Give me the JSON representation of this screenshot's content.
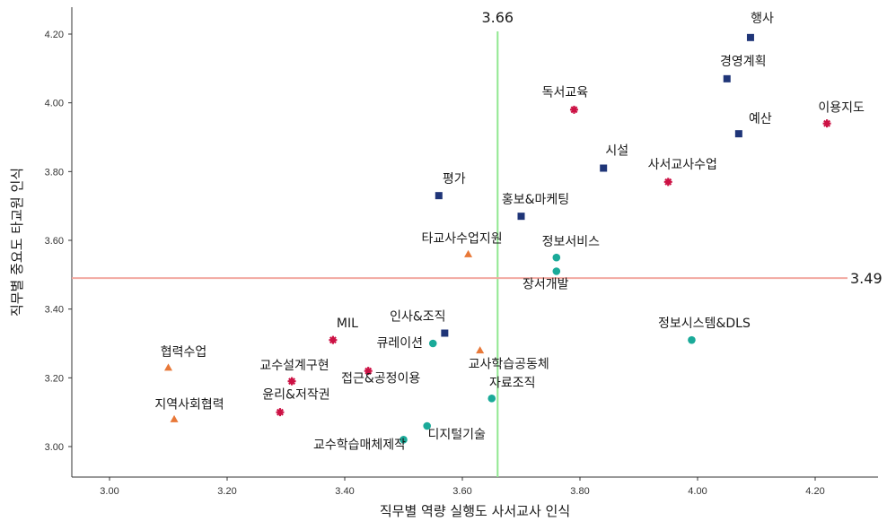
{
  "chart_data": {
    "type": "scatter",
    "xlabel": "직무별 역량 실행도 사서교사 인식",
    "ylabel": "직무별 중요도 타교원 인식",
    "xlim": [
      2.93,
      4.33
    ],
    "ylim": [
      2.94,
      4.26
    ],
    "xticks": [
      "3.00",
      "3.20",
      "3.40",
      "3.60",
      "3.80",
      "4.00",
      "4.20"
    ],
    "yticks": [
      "3.00",
      "3.20",
      "3.40",
      "3.60",
      "3.80",
      "4.00",
      "4.20"
    ],
    "grid": false,
    "reference_lines": [
      {
        "axis": "x",
        "value": 3.66,
        "label": "3.66",
        "color": "#90e890"
      },
      {
        "axis": "y",
        "value": 3.49,
        "label": "3.49",
        "color": "#f2a8a0"
      }
    ],
    "series": [
      {
        "marker": "square",
        "color": "#1f3578",
        "points": [
          {
            "label": "행사",
            "x": 4.09,
            "y": 4.19
          },
          {
            "label": "경영계획",
            "x": 4.05,
            "y": 4.07
          },
          {
            "label": "예산",
            "x": 4.07,
            "y": 3.91
          },
          {
            "label": "시설",
            "x": 3.84,
            "y": 3.81
          },
          {
            "label": "평가",
            "x": 3.56,
            "y": 3.73
          },
          {
            "label": "홍보&마케팅",
            "x": 3.7,
            "y": 3.67
          },
          {
            "label": "인사&조직",
            "x": 3.57,
            "y": 3.33
          }
        ]
      },
      {
        "marker": "star",
        "color": "#cc1144",
        "points": [
          {
            "label": "독서교육",
            "x": 3.79,
            "y": 3.98
          },
          {
            "label": "이용지도",
            "x": 4.22,
            "y": 3.94
          },
          {
            "label": "사서교사수업",
            "x": 3.95,
            "y": 3.77
          },
          {
            "label": "MIL",
            "x": 3.38,
            "y": 3.31
          },
          {
            "label": "교수설계구현",
            "x": 3.31,
            "y": 3.19
          },
          {
            "label": "접근&공정이용",
            "x": 3.44,
            "y": 3.22
          },
          {
            "label": "윤리&저작권",
            "x": 3.29,
            "y": 3.1
          }
        ]
      },
      {
        "marker": "circle",
        "color": "#1aaa99",
        "points": [
          {
            "label": "정보서비스",
            "x": 3.76,
            "y": 3.55
          },
          {
            "label": "장서개발",
            "x": 3.76,
            "y": 3.51
          },
          {
            "label": "큐레이션",
            "x": 3.55,
            "y": 3.3
          },
          {
            "label": "정보시스템&DLS",
            "x": 3.99,
            "y": 3.31
          },
          {
            "label": "자료조직",
            "x": 3.65,
            "y": 3.14
          },
          {
            "label": "디지털기술",
            "x": 3.54,
            "y": 3.06
          },
          {
            "label": "교수학습매체제작",
            "x": 3.5,
            "y": 3.02
          }
        ]
      },
      {
        "marker": "triangle",
        "color": "#e87838",
        "points": [
          {
            "label": "타교사수업지원",
            "x": 3.61,
            "y": 3.56
          },
          {
            "label": "교사학습공동체",
            "x": 3.63,
            "y": 3.28
          },
          {
            "label": "협력수업",
            "x": 3.1,
            "y": 3.23
          },
          {
            "label": "지역사회협력",
            "x": 3.11,
            "y": 3.08
          }
        ]
      }
    ]
  }
}
